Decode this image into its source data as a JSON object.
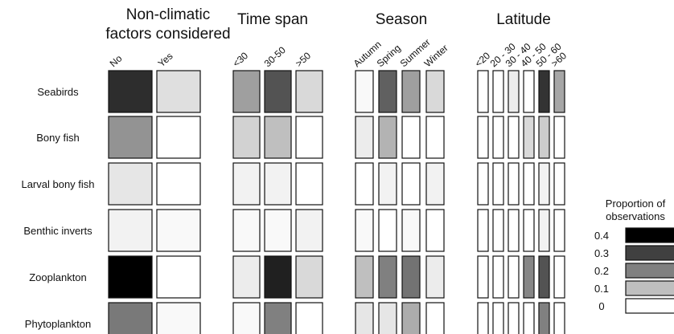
{
  "chart_data": {
    "type": "heatmap",
    "rows": [
      "Seabirds",
      "Bony fish",
      "Larval bony fish",
      "Benthic inverts",
      "Zooplankton",
      "Phytoplankton"
    ],
    "panels": [
      {
        "title_lines": [
          "Non-climatic",
          "factors considered"
        ],
        "columns": [
          "No",
          "Yes"
        ],
        "values": [
          [
            0.33,
            0.05
          ],
          [
            0.17,
            0.0
          ],
          [
            0.04,
            0.0
          ],
          [
            0.02,
            0.01
          ],
          [
            0.4,
            0.0
          ],
          [
            0.21,
            0.01
          ]
        ]
      },
      {
        "title_lines": [
          "Time span"
        ],
        "columns": [
          "<30",
          "30-50",
          ">50"
        ],
        "values": [
          [
            0.15,
            0.27,
            0.06
          ],
          [
            0.07,
            0.1,
            0.0
          ],
          [
            0.02,
            0.02,
            0.0
          ],
          [
            0.01,
            0.01,
            0.02
          ],
          [
            0.03,
            0.35,
            0.06
          ],
          [
            0.01,
            0.2,
            0.0
          ]
        ]
      },
      {
        "title_lines": [
          "Season"
        ],
        "columns": [
          "Autumn",
          "Spring",
          "Summer",
          "Winter"
        ],
        "values": [
          [
            0.01,
            0.25,
            0.15,
            0.06
          ],
          [
            0.03,
            0.12,
            0.0,
            0.0
          ],
          [
            0.0,
            0.02,
            0.0,
            0.02
          ],
          [
            0.01,
            0.0,
            0.01,
            0.0
          ],
          [
            0.1,
            0.2,
            0.22,
            0.03
          ],
          [
            0.04,
            0.04,
            0.13,
            0.0
          ]
        ]
      },
      {
        "title_lines": [
          "Latitude"
        ],
        "columns": [
          "<20",
          "20 - 30",
          "30 - 40",
          "40 - 50",
          "50 - 60",
          ">60"
        ],
        "values": [
          [
            0.0,
            0.0,
            0.03,
            0.0,
            0.32,
            0.14
          ],
          [
            0.0,
            0.0,
            0.0,
            0.06,
            0.08,
            0.0
          ],
          [
            0.0,
            0.0,
            0.0,
            0.0,
            0.02,
            0.0
          ],
          [
            0.0,
            0.0,
            0.0,
            0.0,
            0.02,
            0.0
          ],
          [
            0.0,
            0.0,
            0.0,
            0.19,
            0.27,
            0.0
          ],
          [
            0.0,
            0.0,
            0.0,
            0.0,
            0.2,
            0.0
          ]
        ]
      }
    ],
    "legend": {
      "title_lines": [
        "Proportion of",
        "observations"
      ],
      "ticks": [
        "0.4",
        "0.3",
        "0.2",
        "0.1",
        "0"
      ],
      "values": [
        0.4,
        0.3,
        0.2,
        0.1,
        0.0
      ]
    },
    "colors": {
      "high": "#000000",
      "low": "#ffffff",
      "border": "#111111"
    }
  }
}
